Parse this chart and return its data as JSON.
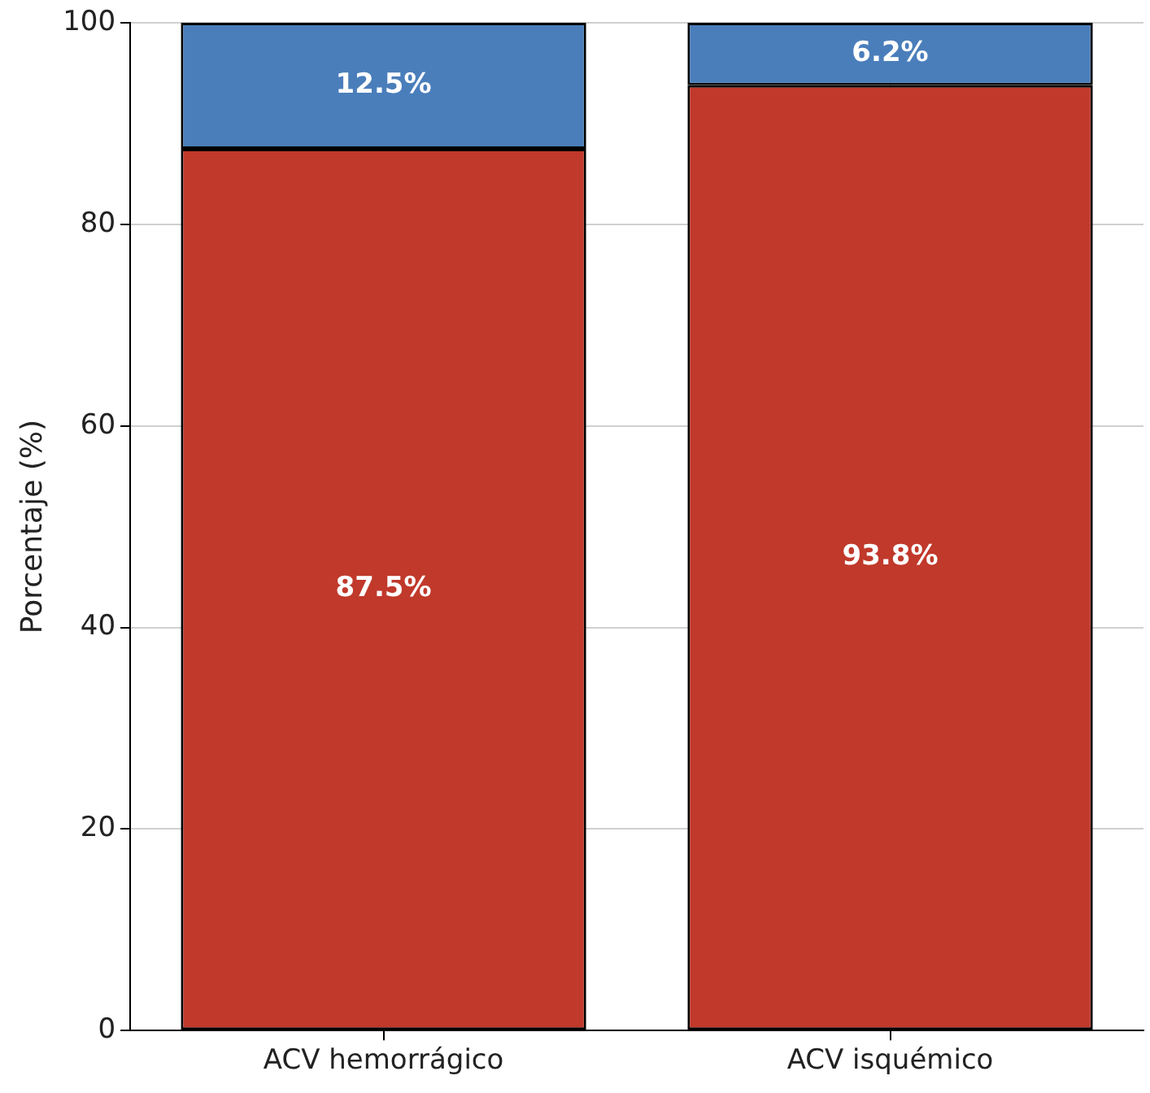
{
  "chart_data": {
    "type": "bar",
    "stacked": true,
    "ylabel": "Porcentaje (%)",
    "categories": [
      "ACV hemorrágico",
      "ACV isquémico"
    ],
    "series": [
      {
        "color": "#c0392b",
        "values": [
          87.5,
          93.8
        ],
        "value_labels": [
          "87.5%",
          "93.8%"
        ]
      },
      {
        "color": "#4a7ebb",
        "values": [
          12.5,
          6.2
        ],
        "value_labels": [
          "12.5%",
          "6.2%"
        ]
      }
    ],
    "ylim": [
      0,
      100
    ],
    "yticks": [
      0,
      20,
      40,
      60,
      80,
      100
    ],
    "grid": true,
    "legend": false
  }
}
